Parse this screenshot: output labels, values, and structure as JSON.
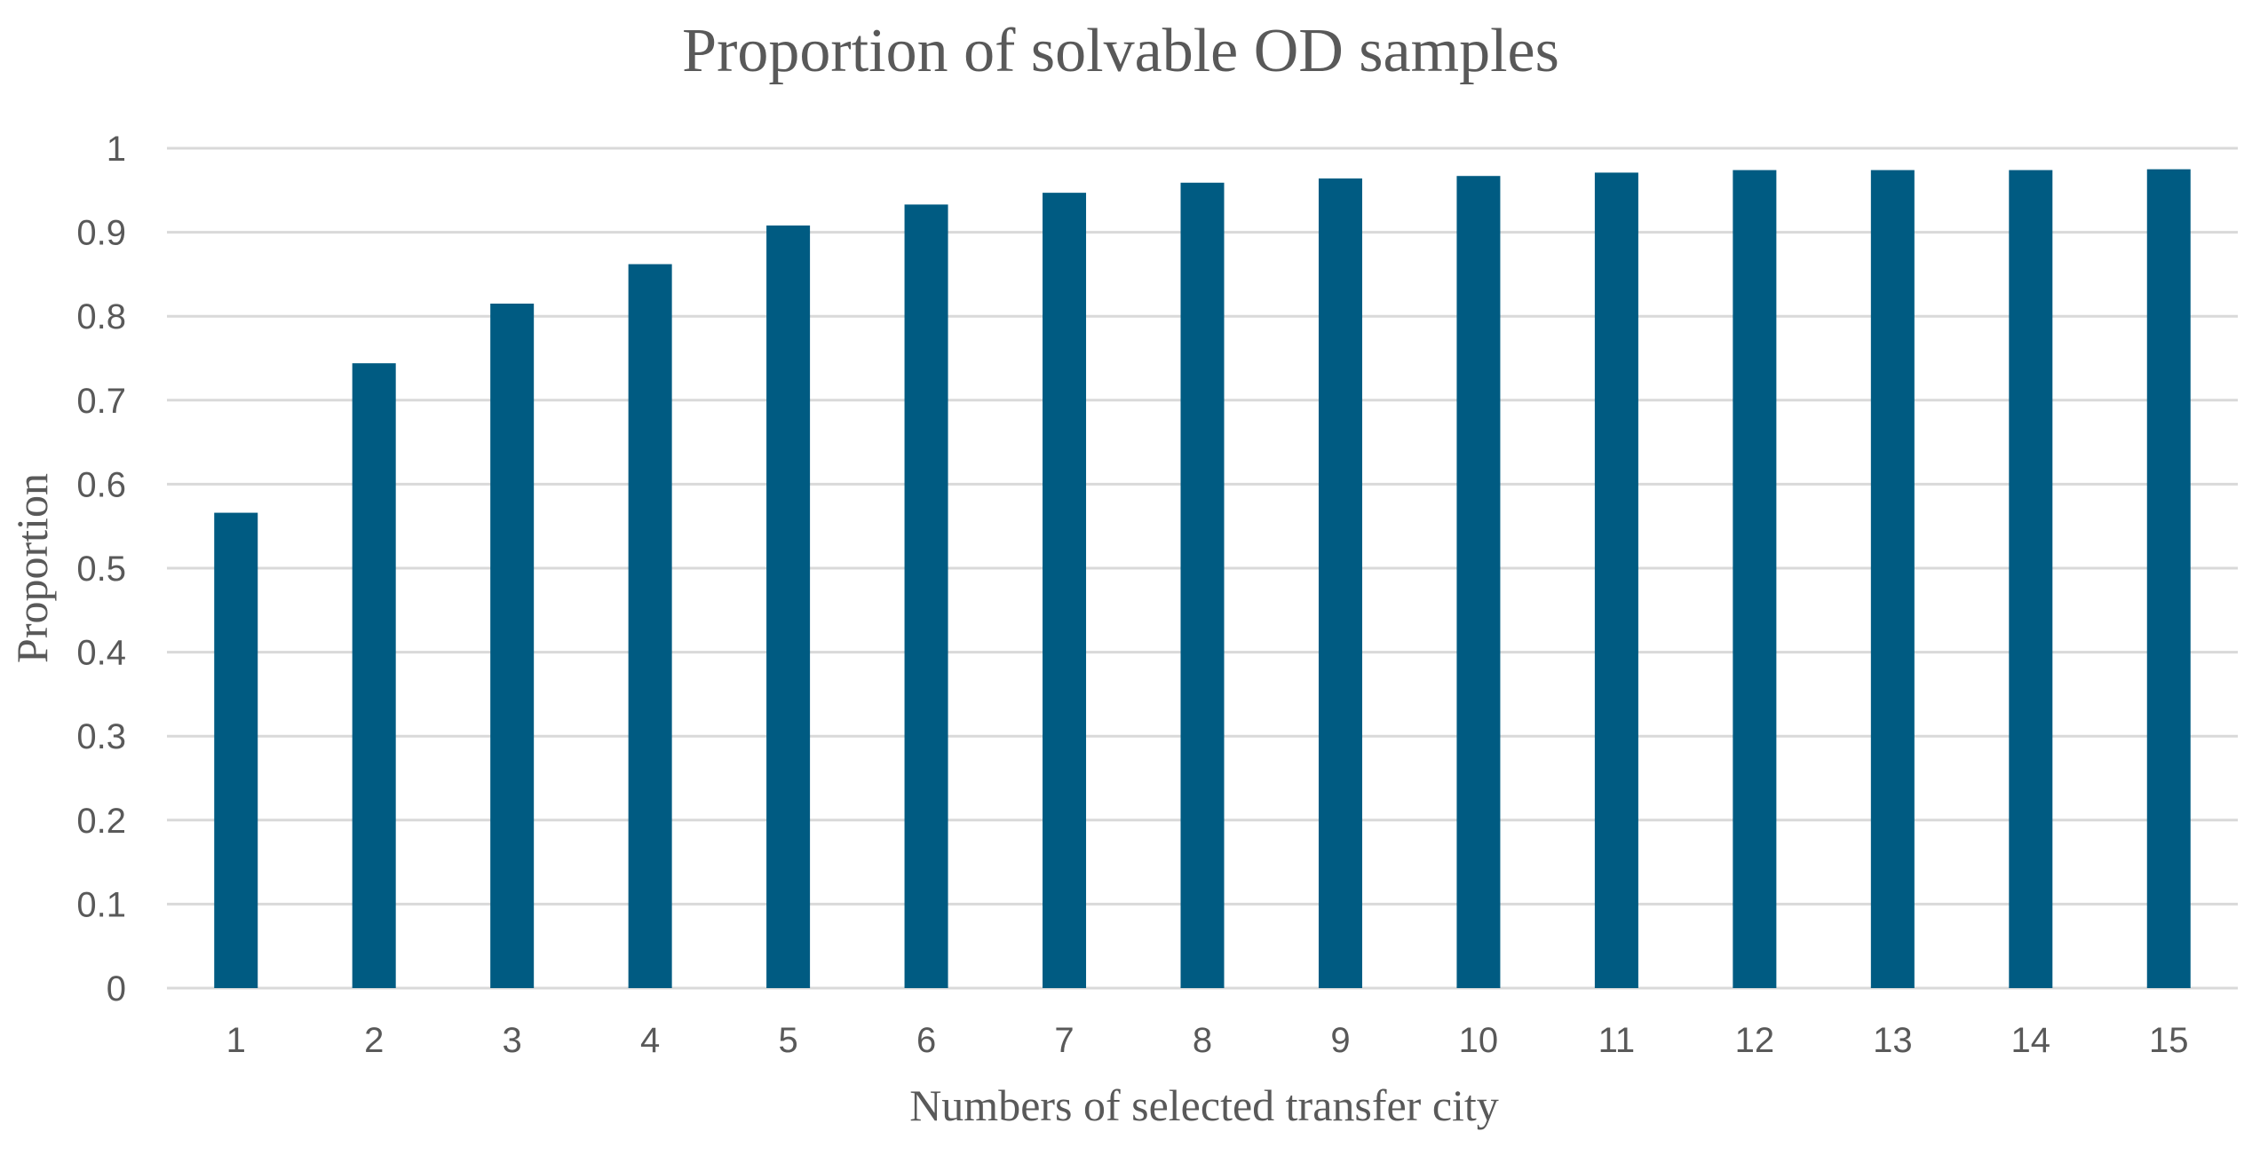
{
  "chart_data": {
    "type": "bar",
    "title": "Proportion of solvable OD samples",
    "xlabel": "Numbers of selected transfer city",
    "ylabel": "Proportion",
    "categories": [
      "1",
      "2",
      "3",
      "4",
      "5",
      "6",
      "7",
      "8",
      "9",
      "10",
      "11",
      "12",
      "13",
      "14",
      "15"
    ],
    "values": [
      0.566,
      0.744,
      0.815,
      0.862,
      0.908,
      0.933,
      0.947,
      0.959,
      0.964,
      0.967,
      0.971,
      0.974,
      0.974,
      0.974,
      0.975
    ],
    "ylim": [
      0,
      1
    ],
    "yticks": [
      "0",
      "0.1",
      "0.2",
      "0.3",
      "0.4",
      "0.5",
      "0.6",
      "0.7",
      "0.8",
      "0.9",
      "1"
    ],
    "grid": true,
    "legend": "none",
    "colors": {
      "bar": "#005B82",
      "grid": "#D9D9D9",
      "text": "#595959"
    }
  }
}
